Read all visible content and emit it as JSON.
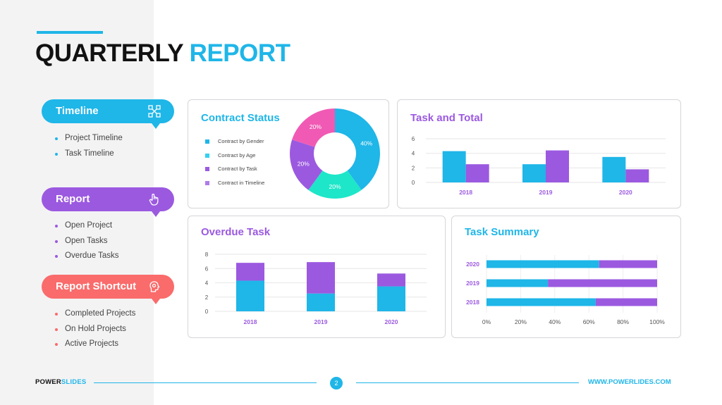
{
  "title": {
    "part1": "QUARTERLY",
    "part2": "REPORT"
  },
  "sections": {
    "timeline": {
      "label": "Timeline",
      "items": [
        "Project Timeline",
        "Task Timeline"
      ]
    },
    "report": {
      "label": "Report",
      "items": [
        "Open Project",
        "Open Tasks",
        "Overdue Tasks"
      ]
    },
    "shortcut": {
      "label": "Report Shortcut",
      "items": [
        "Completed Projects",
        "On Hold Projects",
        "Active Projects"
      ]
    }
  },
  "colors": {
    "blue": "#1fb6e8",
    "purple": "#9b59e0",
    "teal": "#1ee6c8",
    "pink": "#f05ab4",
    "coral": "#fa6b6b"
  },
  "contract_status": {
    "title": "Contract Status"
  },
  "task_total": {
    "title": "Task and Total"
  },
  "overdue_task": {
    "title": "Overdue Task"
  },
  "task_summary": {
    "title": "Task Summary"
  },
  "chart_data": [
    {
      "type": "pie",
      "title": "Contract Status",
      "donut": true,
      "legend": [
        "Contract by Gender",
        "Contract by Age",
        "Contract by Task",
        "Contract in Timeline"
      ],
      "slices": [
        {
          "label": "40%",
          "value": 40,
          "color": "#1fb6e8"
        },
        {
          "label": "20%",
          "value": 20,
          "color": "#1ee6c8"
        },
        {
          "label": "20%",
          "value": 20,
          "color": "#9b59e0"
        },
        {
          "label": "20%",
          "value": 20,
          "color": "#f05ab4"
        }
      ]
    },
    {
      "type": "bar",
      "title": "Task and Total",
      "categories": [
        "2018",
        "2019",
        "2020"
      ],
      "series": [
        {
          "values": [
            4.3,
            2.5,
            3.5
          ],
          "color": "#1fb6e8"
        },
        {
          "values": [
            2.5,
            4.4,
            1.8
          ],
          "color": "#9b59e0"
        }
      ],
      "ylim": [
        0,
        6
      ],
      "yticks": [
        "0",
        "2",
        "4",
        "6"
      ],
      "grid": true
    },
    {
      "type": "bar",
      "title": "Overdue Task",
      "stacked": true,
      "categories": [
        "2018",
        "2019",
        "2020"
      ],
      "series": [
        {
          "values": [
            4.3,
            2.5,
            3.5
          ],
          "color": "#1fb6e8"
        },
        {
          "values": [
            2.5,
            4.4,
            1.8
          ],
          "color": "#9b59e0"
        }
      ],
      "ylim": [
        0,
        8
      ],
      "yticks": [
        "0",
        "2",
        "4",
        "6",
        "8"
      ],
      "grid": true
    },
    {
      "type": "bar",
      "title": "Task Summary",
      "orientation": "horizontal",
      "stacked_percent": true,
      "categories": [
        "2020",
        "2019",
        "2018"
      ],
      "series": [
        {
          "values": [
            66,
            36,
            64
          ],
          "color": "#1fb6e8"
        },
        {
          "values": [
            34,
            64,
            36
          ],
          "color": "#9b59e0"
        }
      ],
      "xlim": [
        0,
        100
      ],
      "xticks": [
        "0%",
        "20%",
        "40%",
        "60%",
        "80%",
        "100%"
      ]
    }
  ],
  "footer": {
    "brand_part1": "POWER",
    "brand_part2": "SLIDES",
    "page_number": "2",
    "url": "WWW.POWERLIDES.COM"
  }
}
